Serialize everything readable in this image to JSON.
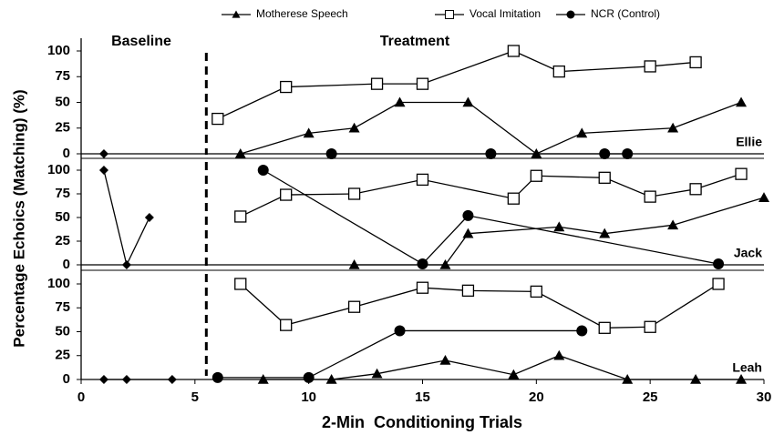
{
  "chart_data": [
    {
      "type": "line",
      "label": "Ellie",
      "phase_labels": [
        "Baseline",
        "Treatment"
      ],
      "phase_line": 5.5,
      "xlim": [
        0,
        30
      ],
      "ylim": [
        0,
        100
      ],
      "yticks": [
        0,
        25,
        50,
        75,
        100
      ],
      "series": [
        {
          "name": "Motherese Speech",
          "color": "#000000",
          "marker": "triangle",
          "x": [
            7,
            10,
            12,
            14,
            17,
            20,
            22,
            26,
            29
          ],
          "values": [
            0,
            20,
            25,
            50,
            50,
            0,
            20,
            25,
            50
          ]
        },
        {
          "name": "Vocal Imitation",
          "color": "#000000",
          "marker": "square",
          "x": [
            6,
            9,
            13,
            15,
            19,
            21,
            25,
            27
          ],
          "values": [
            34,
            65,
            68,
            68,
            100,
            80,
            85,
            89
          ]
        },
        {
          "name": "NCR (Control)",
          "color": "#000000",
          "marker": "circle",
          "x": [
            11,
            18,
            23,
            24
          ],
          "values": [
            0,
            0,
            0,
            0
          ]
        },
        {
          "color": "#000000",
          "marker": "diamond",
          "x": [
            1
          ],
          "values": [
            0
          ]
        }
      ]
    },
    {
      "type": "line",
      "label": "Jack",
      "phase_line": 5.5,
      "ylabel": "Percentage Echoics (Matching) (%)",
      "xlim": [
        0,
        30
      ],
      "ylim": [
        0,
        100
      ],
      "yticks": [
        0,
        25,
        50,
        75,
        100
      ],
      "series": [
        {
          "color": "#000000",
          "marker": "triangle",
          "x": [
            12,
            16,
            17,
            21,
            23,
            26,
            30
          ],
          "values": [
            0,
            0,
            33,
            40,
            33,
            42,
            71
          ]
        },
        {
          "color": "#000000",
          "marker": "square",
          "x": [
            7,
            9,
            12,
            15,
            19,
            20,
            23,
            25,
            27,
            29
          ],
          "values": [
            51,
            74,
            75,
            90,
            70,
            94,
            92,
            72,
            80,
            96
          ]
        },
        {
          "color": "#000000",
          "marker": "circle",
          "x": [
            8,
            15,
            17,
            28
          ],
          "values": [
            100,
            1,
            52,
            1
          ]
        },
        {
          "color": "#000000",
          "marker": "diamond",
          "x": [
            1,
            2,
            3
          ],
          "values": [
            100,
            0,
            50
          ]
        }
      ]
    },
    {
      "type": "line",
      "label": "Leah",
      "phase_line": 5.5,
      "xlabel": "2-Min  Conditioning Trials",
      "xlim": [
        0,
        30
      ],
      "xticks": [
        0,
        5,
        10,
        15,
        20,
        25,
        30
      ],
      "ylim": [
        0,
        100
      ],
      "yticks": [
        0,
        25,
        50,
        75,
        100
      ],
      "series": [
        {
          "color": "#000000",
          "marker": "triangle",
          "x": [
            8,
            11,
            13,
            16,
            19,
            21,
            24,
            27,
            29
          ],
          "values": [
            0,
            0,
            6,
            20,
            5,
            25,
            0,
            0,
            0
          ]
        },
        {
          "color": "#000000",
          "marker": "square",
          "x": [
            7,
            9,
            12,
            15,
            17,
            20,
            23,
            25,
            28
          ],
          "values": [
            100,
            57,
            76,
            96,
            93,
            92,
            54,
            55,
            100
          ]
        },
        {
          "color": "#000000",
          "marker": "circle",
          "x": [
            6,
            10,
            14,
            22
          ],
          "values": [
            2,
            2,
            51,
            51
          ]
        },
        {
          "color": "#000000",
          "marker": "diamond",
          "x": [
            1,
            2,
            4
          ],
          "values": [
            0,
            0,
            0
          ]
        }
      ]
    }
  ]
}
